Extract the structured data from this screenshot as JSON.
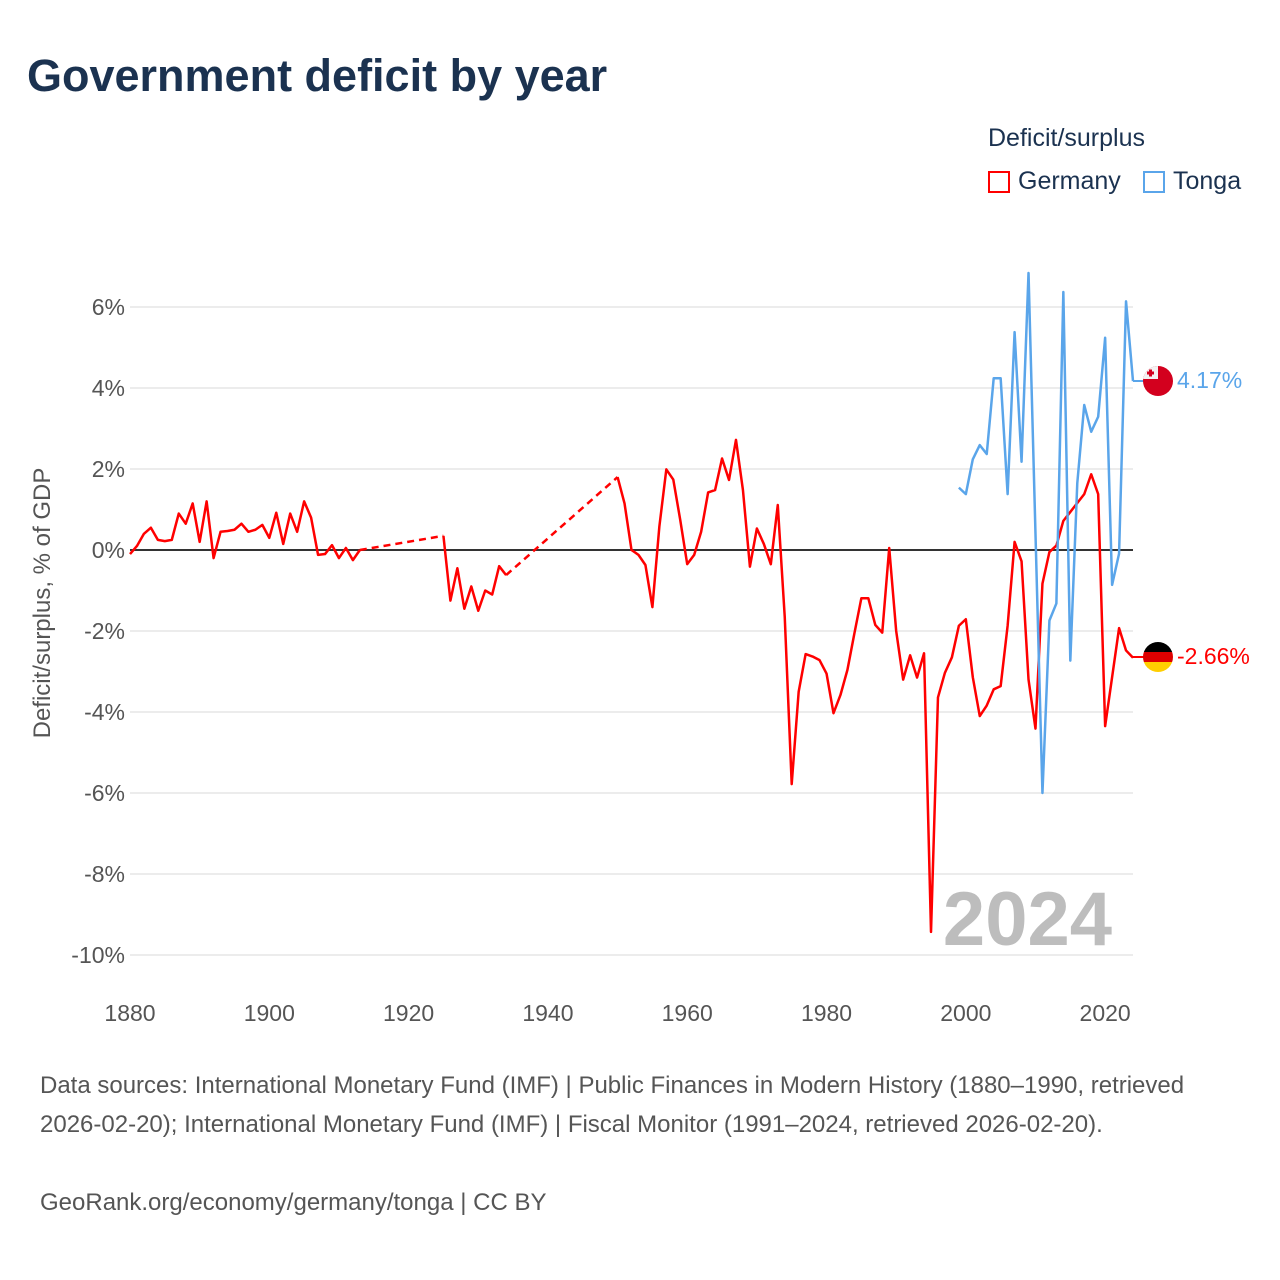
{
  "title": "Government deficit by year",
  "legend": {
    "title": "Deficit/surplus",
    "items": [
      {
        "name": "Germany",
        "color": "#ff0000"
      },
      {
        "name": "Tonga",
        "color": "#5aa5ea"
      }
    ]
  },
  "year_watermark": "2024",
  "footer": {
    "sources": "Data sources: International Monetary Fund (IMF) | Public Finances in Modern History (1880–1990, retrieved 2026-02-20); International Monetary Fund (IMF) | Fiscal Monitor (1991–2024, retrieved 2026-02-20).",
    "credit": "GeoRank.org/economy/germany/tonga | CC BY"
  },
  "chart_data": {
    "type": "line",
    "title": "Government deficit by year",
    "xlabel": "",
    "ylabel": "Deficit/surplus, % of GDP",
    "xlim": [
      1880,
      2024
    ],
    "ylim": [
      -10,
      6
    ],
    "x_ticks": [
      1880,
      1900,
      1920,
      1940,
      1960,
      1980,
      2000,
      2020
    ],
    "x_tick_labels": [
      "1880",
      "1900",
      "1920",
      "1940",
      "1960",
      "1980",
      "2000",
      "2020"
    ],
    "y_ticks": [
      6,
      4,
      2,
      0,
      -2,
      -4,
      -6,
      -8,
      -10
    ],
    "y_tick_labels": [
      "6%",
      "4%",
      "2%",
      "0%",
      "-2%",
      "-4%",
      "-6%",
      "-8%",
      "-10%"
    ],
    "grid": true,
    "legend_position": "top-right",
    "series": [
      {
        "name": "Germany",
        "color": "#ff0000",
        "end_label": "-2.66%",
        "flag": "germany-flag",
        "points": [
          [
            1880,
            -0.1
          ],
          [
            1881,
            0.1
          ],
          [
            1882,
            0.4
          ],
          [
            1883,
            0.55
          ],
          [
            1884,
            0.25
          ],
          [
            1885,
            0.22
          ],
          [
            1886,
            0.25
          ],
          [
            1887,
            0.9
          ],
          [
            1888,
            0.65
          ],
          [
            1889,
            1.15
          ],
          [
            1890,
            0.2
          ],
          [
            1891,
            1.2
          ],
          [
            1892,
            -0.2
          ],
          [
            1893,
            0.45
          ],
          [
            1894,
            0.47
          ],
          [
            1895,
            0.5
          ],
          [
            1896,
            0.65
          ],
          [
            1897,
            0.45
          ],
          [
            1898,
            0.5
          ],
          [
            1899,
            0.62
          ],
          [
            1900,
            0.3
          ],
          [
            1901,
            0.92
          ],
          [
            1902,
            0.15
          ],
          [
            1903,
            0.9
          ],
          [
            1904,
            0.45
          ],
          [
            1905,
            1.2
          ],
          [
            1906,
            0.8
          ],
          [
            1907,
            -0.12
          ],
          [
            1908,
            -0.1
          ],
          [
            1909,
            0.12
          ],
          [
            1910,
            -0.2
          ],
          [
            1911,
            0.05
          ],
          [
            1912,
            -0.25
          ],
          [
            1913,
            0.0
          ],
          [
            1925,
            0.35
          ],
          [
            1926,
            -1.25
          ],
          [
            1927,
            -0.45
          ],
          [
            1928,
            -1.45
          ],
          [
            1929,
            -0.9
          ],
          [
            1930,
            -1.5
          ],
          [
            1931,
            -1.0
          ],
          [
            1932,
            -1.1
          ],
          [
            1933,
            -0.4
          ],
          [
            1934,
            -0.62
          ],
          [
            1950,
            1.8
          ],
          [
            1951,
            1.15
          ],
          [
            1952,
            0.0
          ],
          [
            1953,
            -0.12
          ],
          [
            1954,
            -0.37
          ],
          [
            1955,
            -1.41
          ],
          [
            1956,
            0.58
          ],
          [
            1957,
            1.99
          ],
          [
            1958,
            1.74
          ],
          [
            1959,
            0.74
          ],
          [
            1960,
            -0.35
          ],
          [
            1961,
            -0.12
          ],
          [
            1962,
            0.45
          ],
          [
            1963,
            1.42
          ],
          [
            1964,
            1.48
          ],
          [
            1965,
            2.26
          ],
          [
            1966,
            1.73
          ],
          [
            1967,
            2.72
          ],
          [
            1968,
            1.48
          ],
          [
            1969,
            -0.41
          ],
          [
            1970,
            0.53
          ],
          [
            1971,
            0.15
          ],
          [
            1972,
            -0.35
          ],
          [
            1973,
            1.11
          ],
          [
            1974,
            -1.65
          ],
          [
            1975,
            -5.78
          ],
          [
            1976,
            -3.5
          ],
          [
            1977,
            -2.57
          ],
          [
            1978,
            -2.63
          ],
          [
            1979,
            -2.72
          ],
          [
            1980,
            -3.05
          ],
          [
            1981,
            -4.03
          ],
          [
            1982,
            -3.58
          ],
          [
            1983,
            -2.96
          ],
          [
            1984,
            -2.06
          ],
          [
            1985,
            -1.19
          ],
          [
            1986,
            -1.19
          ],
          [
            1987,
            -1.85
          ],
          [
            1988,
            -2.04
          ],
          [
            1989,
            0.05
          ],
          [
            1990,
            -2.0
          ],
          [
            1991,
            -3.2
          ],
          [
            1992,
            -2.6
          ],
          [
            1993,
            -3.15
          ],
          [
            1994,
            -2.55
          ],
          [
            1995,
            -9.43
          ],
          [
            1996,
            -3.64
          ],
          [
            1997,
            -3.03
          ],
          [
            1998,
            -2.65
          ],
          [
            1999,
            -1.87
          ],
          [
            2000,
            -1.71
          ],
          [
            2001,
            -3.14
          ],
          [
            2002,
            -4.1
          ],
          [
            2003,
            -3.84
          ],
          [
            2004,
            -3.44
          ],
          [
            2005,
            -3.36
          ],
          [
            2006,
            -1.87
          ],
          [
            2007,
            0.2
          ],
          [
            2008,
            -0.28
          ],
          [
            2009,
            -3.2
          ],
          [
            2010,
            -4.41
          ],
          [
            2011,
            -0.83
          ],
          [
            2012,
            -0.05
          ],
          [
            2013,
            0.11
          ],
          [
            2014,
            0.72
          ],
          [
            2015,
            0.94
          ],
          [
            2016,
            1.16
          ],
          [
            2017,
            1.38
          ],
          [
            2018,
            1.87
          ],
          [
            2019,
            1.38
          ],
          [
            2020,
            -4.35
          ],
          [
            2021,
            -3.14
          ],
          [
            2022,
            -1.93
          ],
          [
            2023,
            -2.48
          ],
          [
            2024,
            -2.66
          ]
        ]
      },
      {
        "name": "Tonga",
        "color": "#5aa5ea",
        "end_label": "4.17%",
        "flag": "tonga-flag",
        "points": [
          [
            1999,
            1.54
          ],
          [
            2000,
            1.38
          ],
          [
            2001,
            2.24
          ],
          [
            2002,
            2.59
          ],
          [
            2003,
            2.37
          ],
          [
            2004,
            4.24
          ],
          [
            2005,
            4.24
          ],
          [
            2006,
            1.38
          ],
          [
            2007,
            5.38
          ],
          [
            2008,
            2.18
          ],
          [
            2009,
            6.84
          ],
          [
            2010,
            0.4
          ],
          [
            2011,
            -6.0
          ],
          [
            2012,
            -1.74
          ],
          [
            2013,
            -1.32
          ],
          [
            2014,
            6.37
          ],
          [
            2015,
            -2.73
          ],
          [
            2016,
            1.65
          ],
          [
            2017,
            3.58
          ],
          [
            2018,
            2.92
          ],
          [
            2019,
            3.29
          ],
          [
            2020,
            5.24
          ],
          [
            2021,
            -0.86
          ],
          [
            2022,
            -0.09
          ],
          [
            2023,
            6.14
          ],
          [
            2024,
            4.17
          ]
        ]
      }
    ]
  }
}
